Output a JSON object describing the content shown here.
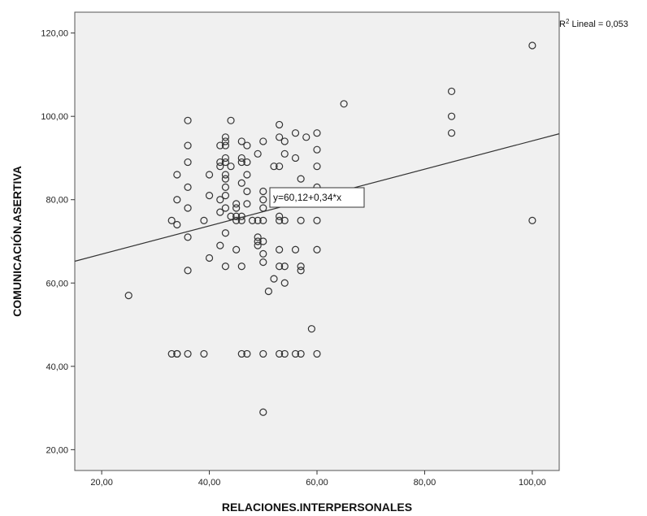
{
  "chart_data": {
    "type": "scatter",
    "xlabel": "RELACIONES.INTERPERSONALES",
    "ylabel": "COMUNICACIÓN.ASERTIVA",
    "xlim": [
      15,
      105
    ],
    "ylim": [
      15,
      125
    ],
    "x_ticks": [
      "20,00",
      "40,00",
      "60,00",
      "80,00",
      "100,00"
    ],
    "y_ticks": [
      "20,00",
      "40,00",
      "60,00",
      "80,00",
      "100,00",
      "120,00"
    ],
    "r2_label": "R² Lineal = 0,053",
    "fit_equation": "y=60,12+0,34*x",
    "fit": {
      "intercept": 60.12,
      "slope": 0.34
    },
    "grid": false,
    "colors": {
      "plot_background": "#f0f0f0",
      "marker_stroke": "#333333",
      "fit_line": "#333333"
    },
    "points": [
      [
        25,
        57
      ],
      [
        33,
        43
      ],
      [
        34,
        43
      ],
      [
        34,
        43
      ],
      [
        36,
        43
      ],
      [
        39,
        43
      ],
      [
        46,
        43
      ],
      [
        47,
        43
      ],
      [
        50,
        43
      ],
      [
        53,
        43
      ],
      [
        54,
        43
      ],
      [
        56,
        43
      ],
      [
        57,
        43
      ],
      [
        60,
        43
      ],
      [
        50,
        29
      ],
      [
        59,
        49
      ],
      [
        51,
        58
      ],
      [
        52,
        61
      ],
      [
        54,
        60
      ],
      [
        33,
        75
      ],
      [
        34,
        74
      ],
      [
        34,
        80
      ],
      [
        34,
        86
      ],
      [
        36,
        63
      ],
      [
        36,
        71
      ],
      [
        36,
        78
      ],
      [
        36,
        83
      ],
      [
        36,
        89
      ],
      [
        36,
        93
      ],
      [
        36,
        99
      ],
      [
        39,
        75
      ],
      [
        40,
        66
      ],
      [
        40,
        81
      ],
      [
        40,
        86
      ],
      [
        42,
        69
      ],
      [
        42,
        77
      ],
      [
        42,
        80
      ],
      [
        42,
        88
      ],
      [
        42,
        89
      ],
      [
        42,
        93
      ],
      [
        43,
        64
      ],
      [
        43,
        72
      ],
      [
        43,
        78
      ],
      [
        43,
        81
      ],
      [
        43,
        83
      ],
      [
        43,
        85
      ],
      [
        43,
        86
      ],
      [
        43,
        89
      ],
      [
        43,
        90
      ],
      [
        43,
        93
      ],
      [
        43,
        94
      ],
      [
        43,
        95
      ],
      [
        44,
        76
      ],
      [
        44,
        88
      ],
      [
        44,
        99
      ],
      [
        45,
        68
      ],
      [
        45,
        75
      ],
      [
        45,
        76
      ],
      [
        45,
        78
      ],
      [
        45,
        79
      ],
      [
        46,
        64
      ],
      [
        46,
        75
      ],
      [
        46,
        76
      ],
      [
        46,
        84
      ],
      [
        46,
        89
      ],
      [
        46,
        90
      ],
      [
        46,
        94
      ],
      [
        47,
        79
      ],
      [
        47,
        82
      ],
      [
        47,
        86
      ],
      [
        47,
        89
      ],
      [
        47,
        93
      ],
      [
        48,
        75
      ],
      [
        49,
        69
      ],
      [
        49,
        70
      ],
      [
        49,
        71
      ],
      [
        49,
        75
      ],
      [
        49,
        91
      ],
      [
        50,
        65
      ],
      [
        50,
        67
      ],
      [
        50,
        70
      ],
      [
        50,
        75
      ],
      [
        50,
        78
      ],
      [
        50,
        80
      ],
      [
        50,
        82
      ],
      [
        50,
        94
      ],
      [
        52,
        88
      ],
      [
        53,
        64
      ],
      [
        53,
        68
      ],
      [
        53,
        75
      ],
      [
        53,
        76
      ],
      [
        53,
        88
      ],
      [
        53,
        95
      ],
      [
        53,
        98
      ],
      [
        54,
        64
      ],
      [
        54,
        75
      ],
      [
        54,
        91
      ],
      [
        54,
        94
      ],
      [
        56,
        68
      ],
      [
        56,
        90
      ],
      [
        56,
        96
      ],
      [
        57,
        63
      ],
      [
        57,
        64
      ],
      [
        57,
        75
      ],
      [
        57,
        85
      ],
      [
        58,
        95
      ],
      [
        60,
        68
      ],
      [
        60,
        75
      ],
      [
        60,
        83
      ],
      [
        60,
        88
      ],
      [
        60,
        92
      ],
      [
        60,
        96
      ],
      [
        65,
        103
      ],
      [
        85,
        96
      ],
      [
        85,
        100
      ],
      [
        85,
        106
      ],
      [
        100,
        75
      ],
      [
        100,
        117
      ]
    ]
  }
}
